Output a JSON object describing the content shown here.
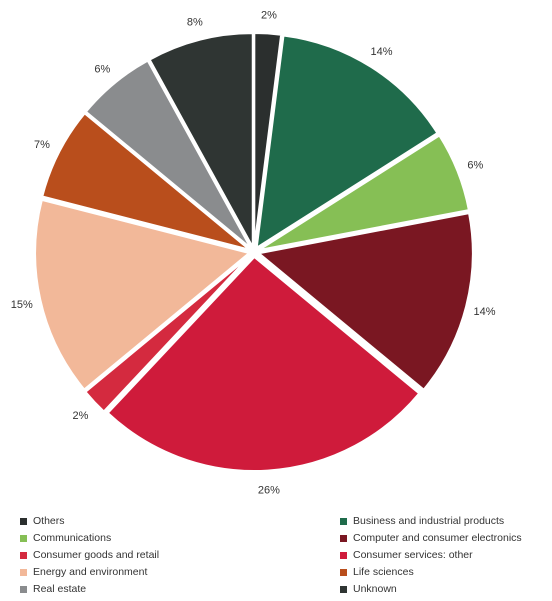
{
  "chart_data": {
    "type": "pie",
    "start_angle_deg": 0,
    "direction": "clockwise",
    "exploded": true,
    "legend_position": "bottom",
    "slices": [
      {
        "label": "Others",
        "value": 2,
        "value_label": "2%",
        "color": "#2b2f2e"
      },
      {
        "label": "Business and industrial products",
        "value": 14,
        "value_label": "14%",
        "color": "#1f6b4b"
      },
      {
        "label": "Communications",
        "value": 6,
        "value_label": "6%",
        "color": "#86bf55"
      },
      {
        "label": "Computer and consumer electronics",
        "value": 14,
        "value_label": "14%",
        "color": "#7a1722"
      },
      {
        "label": "Consumer services: other",
        "value": 26,
        "value_label": "26%",
        "color": "#cf1b3b"
      },
      {
        "label": "Consumer goods and retail",
        "value": 2,
        "value_label": "2%",
        "color": "#d42a3f"
      },
      {
        "label": "Energy and environment",
        "value": 15,
        "value_label": "15%",
        "color": "#f2b899"
      },
      {
        "label": "Life sciences",
        "value": 7,
        "value_label": "7%",
        "color": "#b94e1c"
      },
      {
        "label": "Real estate",
        "value": 6,
        "value_label": "6%",
        "color": "#8a8c8e"
      },
      {
        "label": "Unknown",
        "value": 8,
        "value_label": "8%",
        "color": "#2f3533"
      }
    ],
    "legend": [
      {
        "label": "Others",
        "color": "#2b2f2e"
      },
      {
        "label": "Business and industrial products",
        "color": "#1f6b4b"
      },
      {
        "label": "Communications",
        "color": "#86bf55"
      },
      {
        "label": "Computer and consumer electronics",
        "color": "#7a1722"
      },
      {
        "label": "Consumer goods and retail",
        "color": "#d42a3f"
      },
      {
        "label": "Consumer services: other",
        "color": "#cf1b3b"
      },
      {
        "label": "Energy and environment",
        "color": "#f2b899"
      },
      {
        "label": "Life sciences",
        "color": "#b94e1c"
      },
      {
        "label": "Real estate",
        "color": "#8a8c8e"
      },
      {
        "label": "Unknown",
        "color": "#2f3533"
      }
    ]
  }
}
